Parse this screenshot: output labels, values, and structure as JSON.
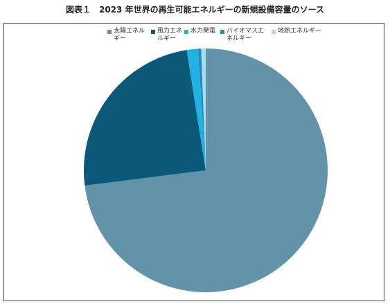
{
  "chart_data": {
    "type": "pie",
    "title": "図表１　2023 年世界の再生可能エネルギーの新規設備容量のソース",
    "categories": [
      "太陽エネルギー",
      "風力エネルギー",
      "水力発電",
      "バイオマスエネルギー",
      "地熱エネルギー"
    ],
    "values": [
      73,
      24.5,
      1.5,
      0.4,
      0.6
    ],
    "colors": [
      "#6293a9",
      "#0b5878",
      "#1fb2e3",
      "#2a86bd",
      "#a8dcf0"
    ]
  }
}
